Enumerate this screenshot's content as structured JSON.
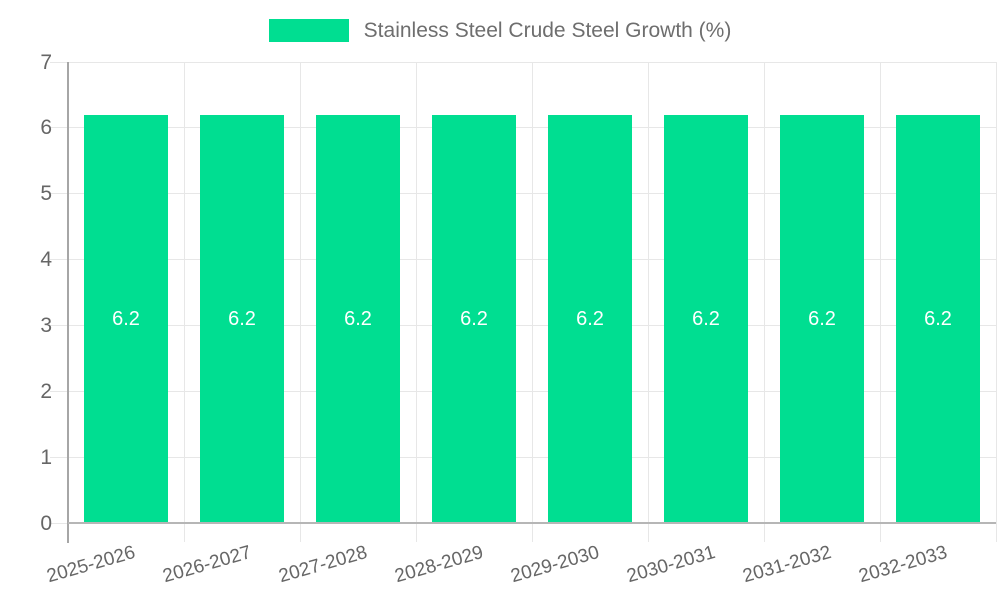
{
  "legend": {
    "label": "Stainless Steel Crude Steel Growth (%)"
  },
  "chart_data": {
    "type": "bar",
    "title": "",
    "categories": [
      "2025-2026",
      "2026-2027",
      "2027-2028",
      "2028-2029",
      "2029-2030",
      "2030-2031",
      "2031-2032",
      "2032-2033"
    ],
    "series": [
      {
        "name": "Stainless Steel Crude Steel Growth (%)",
        "values": [
          6.2,
          6.2,
          6.2,
          6.2,
          6.2,
          6.2,
          6.2,
          6.2
        ]
      }
    ],
    "bar_labels": [
      "6.2",
      "6.2",
      "6.2",
      "6.2",
      "6.2",
      "6.2",
      "6.2",
      "6.2"
    ],
    "ytick_labels": [
      "0",
      "1",
      "2",
      "3",
      "4",
      "5",
      "6",
      "7"
    ],
    "xlabel": "",
    "ylabel": "",
    "ylim": [
      0,
      7
    ],
    "ytick_step": 1,
    "grid": true,
    "legend_position": "top",
    "colors": {
      "bar": "#00de91",
      "bar_label_text": "#ffffff",
      "grid": "#e7e7e7",
      "axis_line": "#a6a6a6",
      "baseline": "#b6b6b6",
      "tick_text": "#666666",
      "legend_text": "#6e6e6e"
    }
  }
}
